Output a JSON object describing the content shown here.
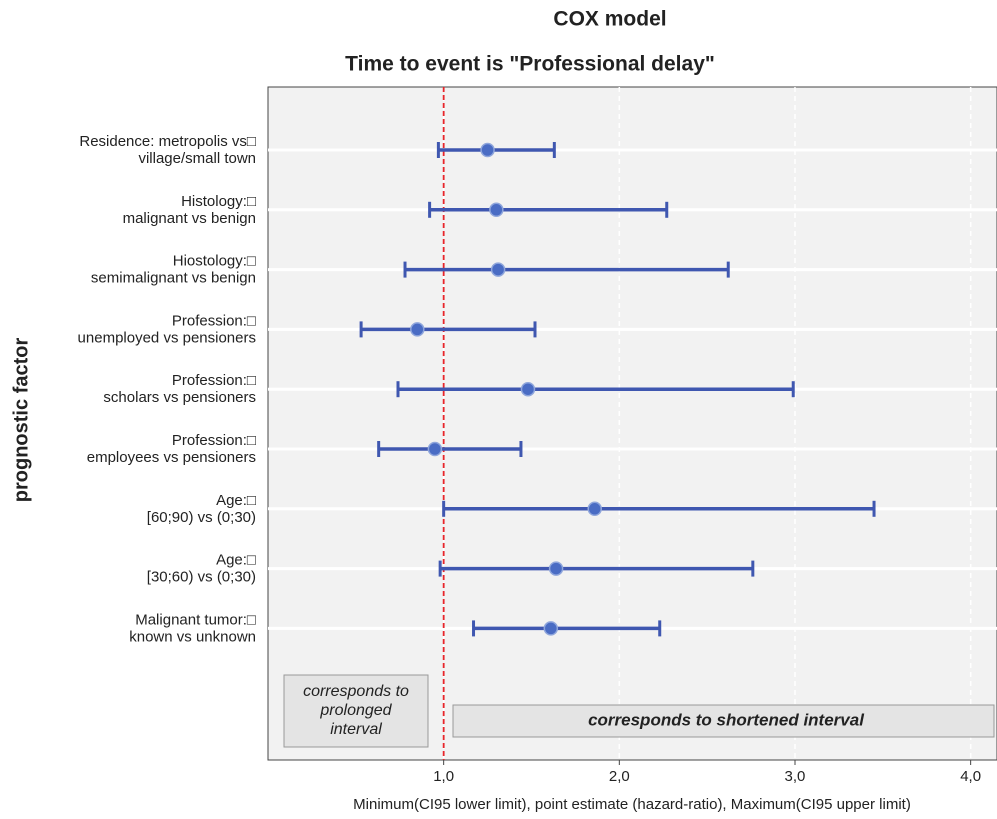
{
  "chart_data": {
    "type": "forest",
    "title": "COX model",
    "subtitle": "Time to event is \"Professional delay\"",
    "y_label": "prognostic factor",
    "x_label": "Minimum(CI95 lower limit), point estimate (hazard-ratio), Maximum(CI95 upper limit)",
    "categories": [
      [
        "Residence: metropolis vs□",
        "village/small town"
      ],
      [
        "Histology:□",
        "malignant vs benign"
      ],
      [
        "Hiostology:□",
        "semimalignant vs benign"
      ],
      [
        "Profession:□",
        "unemployed vs pensioners"
      ],
      [
        "Profession:□",
        "scholars vs pensioners"
      ],
      [
        "Profession:□",
        "employees vs pensioners"
      ],
      [
        "Age:□",
        "[60;90) vs (0;30)"
      ],
      [
        "Age:□",
        "[30;60) vs (0;30)"
      ],
      [
        "Malignant tumor:□",
        "known vs unknown"
      ]
    ],
    "lower": [
      0.97,
      0.92,
      0.78,
      0.53,
      0.74,
      0.63,
      1.0,
      0.98,
      1.17
    ],
    "estimate": [
      1.25,
      1.3,
      1.31,
      0.85,
      1.48,
      0.95,
      1.86,
      1.64,
      1.61
    ],
    "upper": [
      1.63,
      2.27,
      2.62,
      1.52,
      2.99,
      1.44,
      3.45,
      2.76,
      2.23
    ],
    "color": "#3f57b0",
    "point_color": "#4a6cc4",
    "reference_line": 1.0,
    "reference_color": "#e8252a",
    "xlim": [
      0,
      4.15
    ],
    "xticks": [
      {
        "value": 1,
        "label": "1,0"
      },
      {
        "value": 2,
        "label": "2,0"
      },
      {
        "value": 3,
        "label": "3,0"
      },
      {
        "value": 4,
        "label": "4,0"
      }
    ],
    "grid": true,
    "annotations": [
      {
        "text": [
          "corresponds to",
          "prolonged",
          "interval"
        ],
        "color": "#e8252a"
      },
      {
        "text": [
          "corresponds to shortened interval"
        ],
        "color": "#1e8a3a"
      }
    ]
  }
}
